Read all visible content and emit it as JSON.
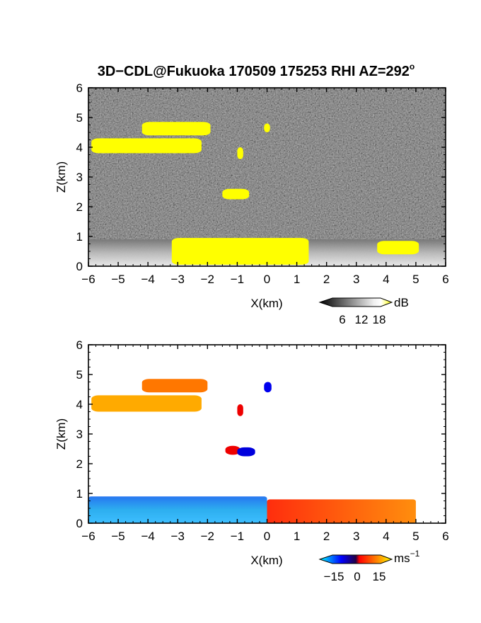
{
  "chart_data": [
    {
      "type": "heatmap",
      "title_main": "3D−CDL@Fukuoka 170509 175253 RHI AZ=292",
      "title_suffix": "o",
      "xlabel": "X(km)",
      "ylabel": "Z(km)",
      "xlim": [
        -6,
        6
      ],
      "ylim": [
        0,
        6
      ],
      "x_ticks": [
        -6,
        -5,
        -4,
        -3,
        -2,
        -1,
        0,
        1,
        2,
        3,
        4,
        5,
        6
      ],
      "y_ticks": [
        0,
        1,
        2,
        3,
        4,
        5,
        6
      ],
      "x_tick_labels": [
        "−6",
        "−5",
        "−4",
        "−3",
        "−2",
        "−1",
        "0",
        "1",
        "2",
        "3",
        "4",
        "5",
        "6"
      ],
      "y_tick_labels": [
        "0",
        "1",
        "2",
        "3",
        "4",
        "5",
        "6"
      ],
      "background": "noise-dark-gray",
      "colorbar": {
        "unit": "dB",
        "ticks": [
          "6",
          "12",
          "18"
        ],
        "range": [
          0,
          20
        ],
        "colors": [
          "#111111",
          "#555555",
          "#aaaaaa",
          "#eeeeee",
          "#ffff00"
        ]
      },
      "regions": [
        {
          "kind": "boundary-layer",
          "x": [
            -6,
            6
          ],
          "z": [
            0,
            0.9
          ],
          "color": "#cccccc"
        },
        {
          "kind": "strong-echo",
          "x": [
            -3.2,
            1.4
          ],
          "z": [
            0.05,
            0.95
          ],
          "color": "#ffff00"
        },
        {
          "kind": "strong-echo",
          "x": [
            3.7,
            5.1
          ],
          "z": [
            0.4,
            0.85
          ],
          "color": "#ffff00"
        },
        {
          "kind": "cloud-layer",
          "x": [
            -5.9,
            -2.2
          ],
          "z": [
            3.8,
            4.3
          ],
          "color": "#ffff00"
        },
        {
          "kind": "cloud-layer",
          "x": [
            -4.2,
            -1.9
          ],
          "z": [
            4.4,
            4.85
          ],
          "color": "#ffff00"
        },
        {
          "kind": "cloud-patch",
          "x": [
            -1.5,
            -0.6
          ],
          "z": [
            2.25,
            2.6
          ],
          "color": "#ffff00"
        },
        {
          "kind": "cloud-patch",
          "x": [
            -1.0,
            -0.8
          ],
          "z": [
            3.6,
            4.0
          ],
          "color": "#ffff00"
        },
        {
          "kind": "cloud-patch",
          "x": [
            -0.1,
            0.1
          ],
          "z": [
            4.5,
            4.8
          ],
          "color": "#ffff00"
        }
      ]
    },
    {
      "type": "heatmap",
      "xlabel": "X(km)",
      "ylabel": "Z(km)",
      "xlim": [
        -6,
        6
      ],
      "ylim": [
        0,
        6
      ],
      "x_ticks": [
        -6,
        -5,
        -4,
        -3,
        -2,
        -1,
        0,
        1,
        2,
        3,
        4,
        5,
        6
      ],
      "y_ticks": [
        0,
        1,
        2,
        3,
        4,
        5,
        6
      ],
      "x_tick_labels": [
        "−6",
        "−5",
        "−4",
        "−3",
        "−2",
        "−1",
        "0",
        "1",
        "2",
        "3",
        "4",
        "5",
        "6"
      ],
      "y_tick_labels": [
        "0",
        "1",
        "2",
        "3",
        "4",
        "5",
        "6"
      ],
      "background": "white",
      "colorbar": {
        "unit": "ms",
        "unit_sup": "−1",
        "ticks": [
          "−15",
          "0",
          "15"
        ],
        "range": [
          -20,
          20
        ],
        "colors": [
          "#00ffff",
          "#0000ff",
          "#ff0000",
          "#ff8800",
          "#ffff00"
        ]
      },
      "regions": [
        {
          "kind": "boundary-layer-neg",
          "x": [
            -6,
            0
          ],
          "z": [
            0,
            0.9
          ],
          "color": "#1199ee"
        },
        {
          "kind": "boundary-layer-pos",
          "x": [
            0,
            5.0
          ],
          "z": [
            0,
            0.8
          ],
          "color": "#ff4400"
        },
        {
          "kind": "cloud-layer",
          "x": [
            -5.9,
            -2.2
          ],
          "z": [
            3.75,
            4.3
          ],
          "color": "#ffaa00"
        },
        {
          "kind": "cloud-layer",
          "x": [
            -4.2,
            -2.0
          ],
          "z": [
            4.4,
            4.85
          ],
          "color": "#ff7700"
        },
        {
          "kind": "cloud-patch-pos",
          "x": [
            -1.4,
            -0.9
          ],
          "z": [
            2.3,
            2.6
          ],
          "color": "#ee0000"
        },
        {
          "kind": "cloud-patch-neg",
          "x": [
            -1.0,
            -0.4
          ],
          "z": [
            2.25,
            2.55
          ],
          "color": "#0000dd"
        },
        {
          "kind": "cloud-patch",
          "x": [
            -1.0,
            -0.8
          ],
          "z": [
            3.6,
            4.0
          ],
          "color": "#ee0000"
        },
        {
          "kind": "cloud-patch-neg",
          "x": [
            -0.1,
            0.15
          ],
          "z": [
            4.4,
            4.75
          ],
          "color": "#0000ee"
        }
      ]
    }
  ]
}
